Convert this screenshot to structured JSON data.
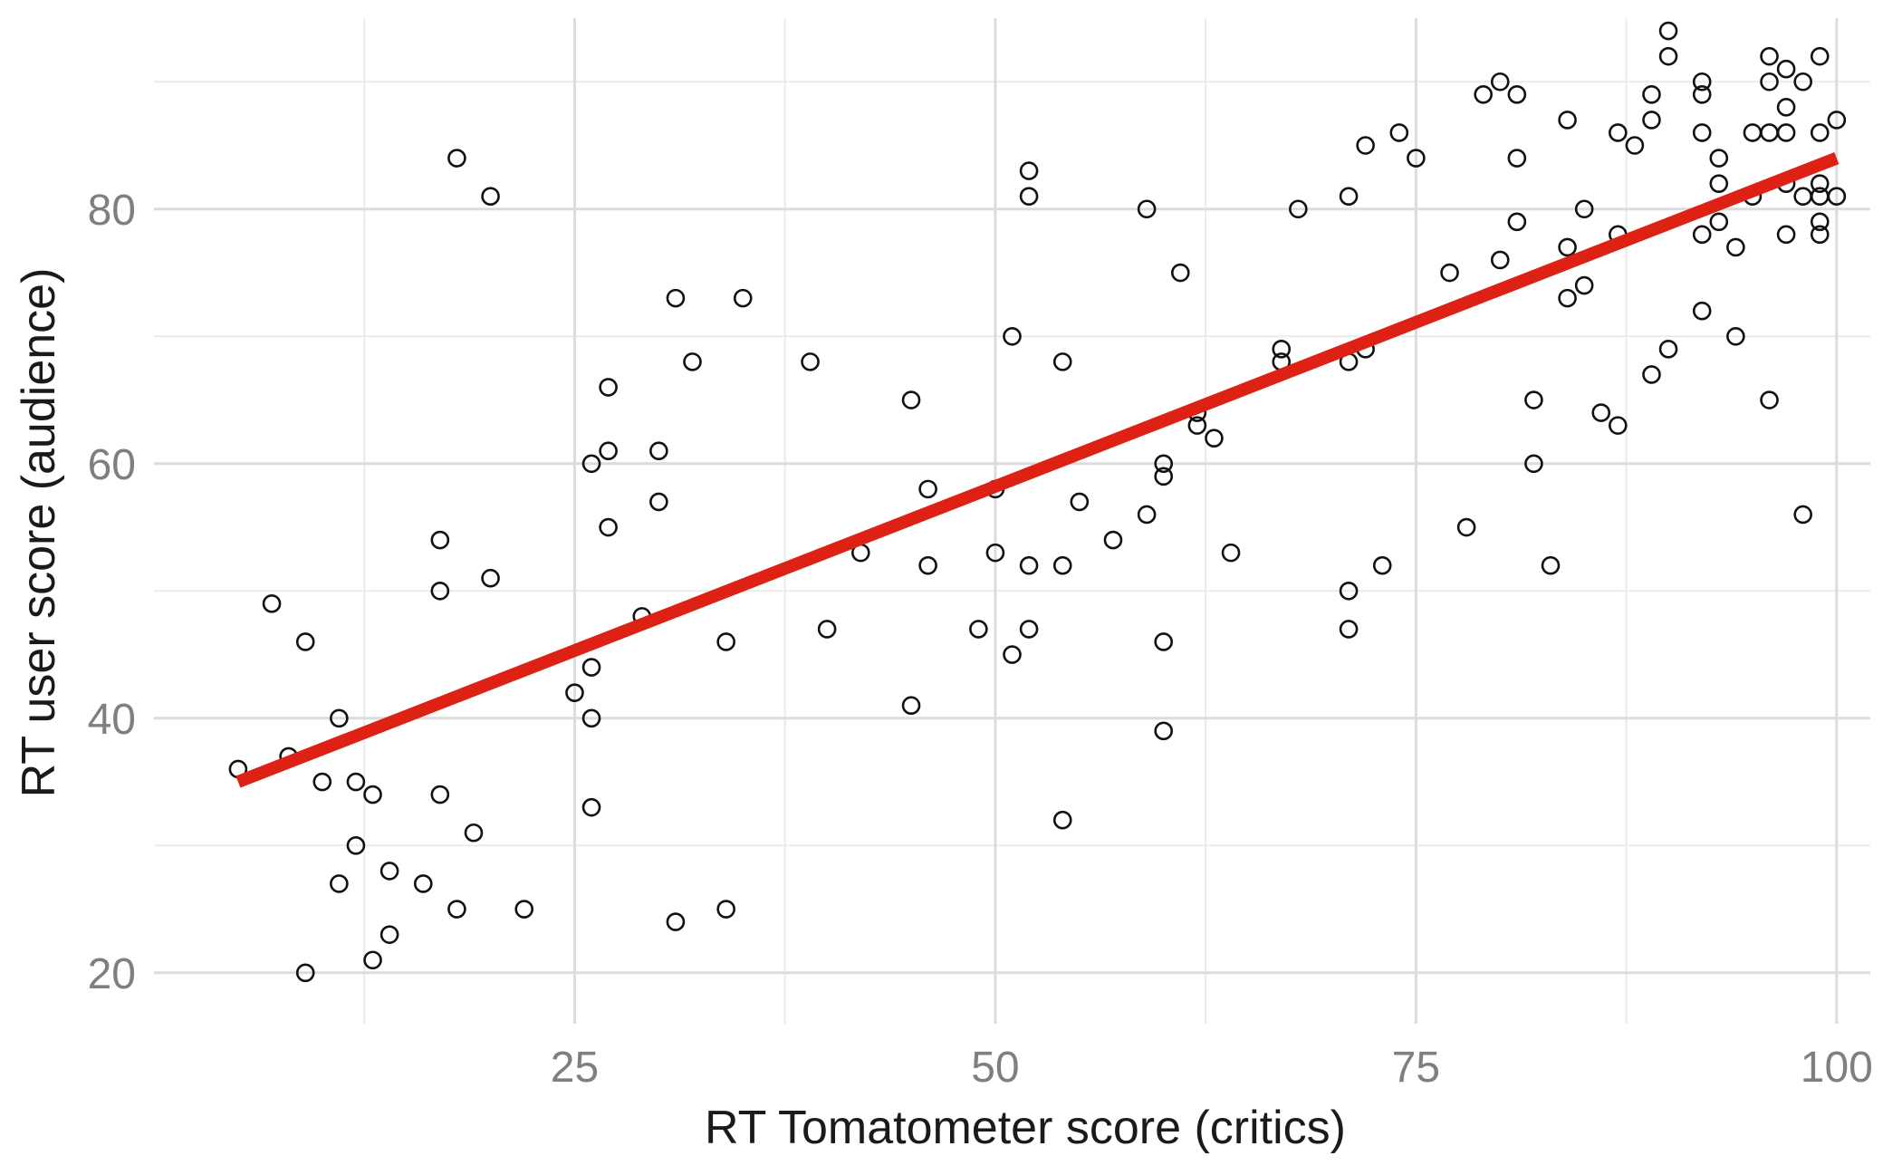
{
  "chart_data": {
    "type": "scatter",
    "xlabel": "RT Tomatometer score (critics)",
    "ylabel": "RT user score (audience)",
    "xlim": [
      0,
      102
    ],
    "ylim": [
      16,
      95
    ],
    "x_ticks": [
      25,
      50,
      75,
      100
    ],
    "y_ticks": [
      20,
      40,
      60,
      80
    ],
    "x_minor": [
      12.5,
      37.5,
      62.5,
      87.5
    ],
    "y_minor": [
      30,
      50,
      70,
      90
    ],
    "grid": true,
    "colors": {
      "points": "#111111",
      "fit_line": "#dd2215"
    },
    "fit_line": {
      "x": [
        5,
        100
      ],
      "y": [
        35,
        84
      ]
    },
    "points": [
      [
        5,
        36
      ],
      [
        7,
        49
      ],
      [
        8,
        37
      ],
      [
        9,
        46
      ],
      [
        9,
        20
      ],
      [
        10,
        35
      ],
      [
        11,
        40
      ],
      [
        11,
        27
      ],
      [
        12,
        35
      ],
      [
        12,
        30
      ],
      [
        13,
        34
      ],
      [
        13,
        21
      ],
      [
        14,
        28
      ],
      [
        14,
        23
      ],
      [
        16,
        27
      ],
      [
        17,
        54
      ],
      [
        17,
        50
      ],
      [
        17,
        34
      ],
      [
        18,
        84
      ],
      [
        18,
        25
      ],
      [
        19,
        31
      ],
      [
        20,
        81
      ],
      [
        20,
        51
      ],
      [
        22,
        25
      ],
      [
        25,
        42
      ],
      [
        26,
        60
      ],
      [
        26,
        44
      ],
      [
        26,
        40
      ],
      [
        26,
        33
      ],
      [
        27,
        66
      ],
      [
        27,
        61
      ],
      [
        27,
        55
      ],
      [
        29,
        48
      ],
      [
        30,
        61
      ],
      [
        30,
        57
      ],
      [
        31,
        73
      ],
      [
        31,
        24
      ],
      [
        32,
        68
      ],
      [
        34,
        46
      ],
      [
        34,
        25
      ],
      [
        35,
        73
      ],
      [
        39,
        68
      ],
      [
        40,
        47
      ],
      [
        42,
        53
      ],
      [
        45,
        65
      ],
      [
        45,
        41
      ],
      [
        46,
        58
      ],
      [
        46,
        52
      ],
      [
        49,
        47
      ],
      [
        50,
        58
      ],
      [
        50,
        53
      ],
      [
        51,
        70
      ],
      [
        51,
        45
      ],
      [
        52,
        83
      ],
      [
        52,
        81
      ],
      [
        52,
        52
      ],
      [
        52,
        47
      ],
      [
        54,
        68
      ],
      [
        54,
        52
      ],
      [
        54,
        32
      ],
      [
        55,
        57
      ],
      [
        57,
        54
      ],
      [
        59,
        80
      ],
      [
        59,
        56
      ],
      [
        60,
        60
      ],
      [
        60,
        59
      ],
      [
        60,
        46
      ],
      [
        60,
        39
      ],
      [
        61,
        75
      ],
      [
        62,
        64
      ],
      [
        62,
        63
      ],
      [
        63,
        62
      ],
      [
        64,
        53
      ],
      [
        67,
        69
      ],
      [
        67,
        68
      ],
      [
        68,
        80
      ],
      [
        71,
        81
      ],
      [
        71,
        68
      ],
      [
        71,
        50
      ],
      [
        71,
        47
      ],
      [
        72,
        85
      ],
      [
        72,
        69
      ],
      [
        73,
        52
      ],
      [
        74,
        86
      ],
      [
        75,
        84
      ],
      [
        77,
        75
      ],
      [
        78,
        55
      ],
      [
        79,
        89
      ],
      [
        80,
        90
      ],
      [
        80,
        76
      ],
      [
        81,
        89
      ],
      [
        81,
        84
      ],
      [
        81,
        79
      ],
      [
        82,
        65
      ],
      [
        82,
        60
      ],
      [
        83,
        52
      ],
      [
        84,
        87
      ],
      [
        84,
        77
      ],
      [
        84,
        73
      ],
      [
        85,
        80
      ],
      [
        85,
        74
      ],
      [
        86,
        64
      ],
      [
        87,
        86
      ],
      [
        87,
        78
      ],
      [
        87,
        63
      ],
      [
        88,
        85
      ],
      [
        89,
        89
      ],
      [
        89,
        87
      ],
      [
        89,
        67
      ],
      [
        90,
        94
      ],
      [
        90,
        92
      ],
      [
        90,
        69
      ],
      [
        92,
        90
      ],
      [
        92,
        89
      ],
      [
        92,
        86
      ],
      [
        92,
        78
      ],
      [
        92,
        72
      ],
      [
        93,
        84
      ],
      [
        93,
        82
      ],
      [
        93,
        79
      ],
      [
        94,
        77
      ],
      [
        94,
        70
      ],
      [
        95,
        86
      ],
      [
        95,
        81
      ],
      [
        96,
        92
      ],
      [
        96,
        90
      ],
      [
        96,
        86
      ],
      [
        96,
        65
      ],
      [
        97,
        91
      ],
      [
        97,
        88
      ],
      [
        97,
        86
      ],
      [
        97,
        82
      ],
      [
        97,
        78
      ],
      [
        98,
        90
      ],
      [
        98,
        81
      ],
      [
        98,
        56
      ],
      [
        99,
        92
      ],
      [
        99,
        86
      ],
      [
        99,
        82
      ],
      [
        99,
        81
      ],
      [
        99,
        79
      ],
      [
        99,
        78
      ],
      [
        100,
        87
      ],
      [
        100,
        81
      ]
    ]
  }
}
